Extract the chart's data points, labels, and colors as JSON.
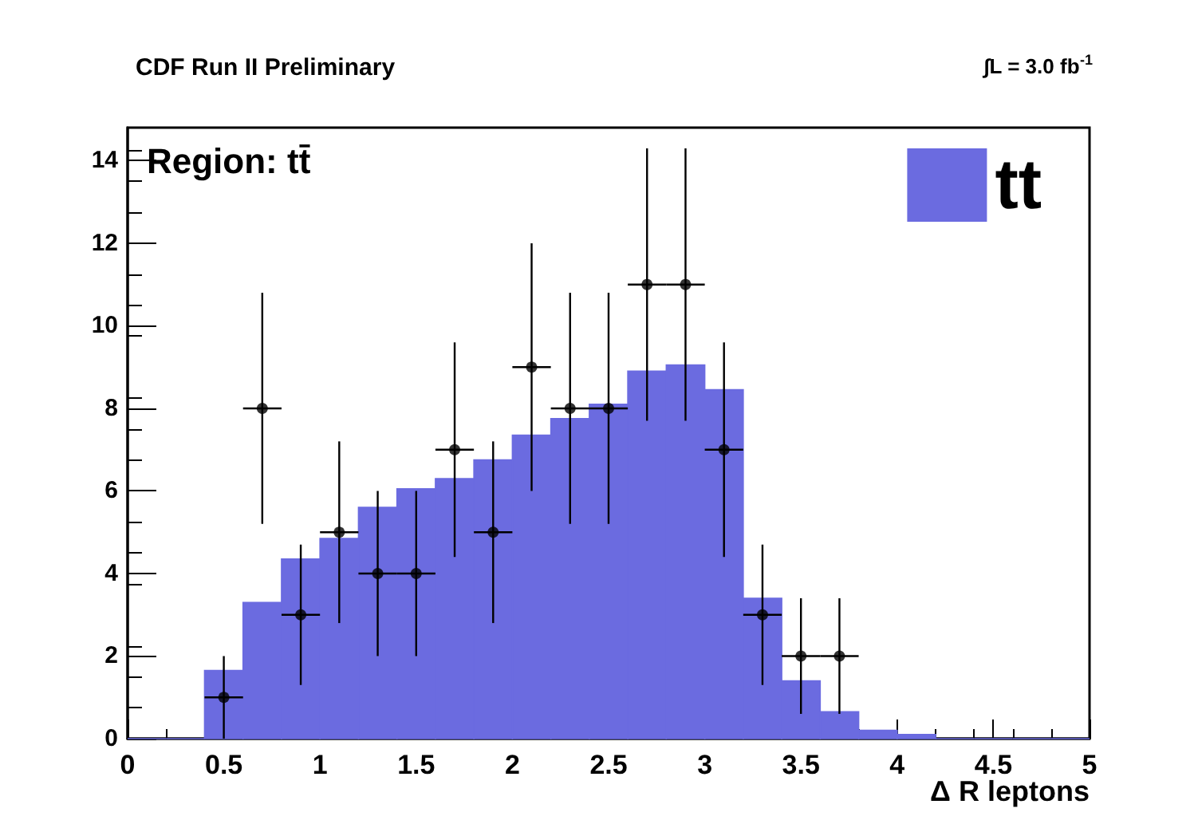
{
  "chart_data": {
    "type": "histogram",
    "title": "CDF Run II Preliminary",
    "xlabel": "Δ R leptons",
    "annotations": [
      "∫L = 3.0 fb$^{-1}$",
      "Region: tt̄"
    ],
    "bins": [
      0,
      0.2,
      0.4,
      0.6,
      0.8,
      1.0,
      1.2,
      1.4,
      1.6,
      1.8,
      2.0,
      2.2,
      2.4,
      2.6,
      2.8,
      3.0,
      3.2,
      3.4,
      3.6,
      3.8,
      4.0,
      4.2,
      4.4,
      4.6,
      4.8,
      5.0
    ],
    "series": [
      {
        "name": "tt",
        "color": "#6b6be0",
        "values": [
          0,
          0,
          1.65,
          3.3,
          4.35,
          4.85,
          5.6,
          6.05,
          6.3,
          6.75,
          7.35,
          7.75,
          8.1,
          8.9,
          9.05,
          8.45,
          3.4,
          1.4,
          0.65,
          0.2,
          0.1,
          0,
          0,
          0,
          0
        ]
      },
      {
        "type": "scatter",
        "color": "#000000",
        "marker": "circle",
        "x": [
          0.5,
          0.7,
          0.9,
          1.1,
          1.3,
          1.5,
          1.7,
          1.9,
          2.1,
          2.3,
          2.5,
          2.7,
          2.9,
          3.1,
          3.3,
          3.5,
          3.7
        ],
        "values": [
          1,
          8,
          3,
          5,
          4,
          4,
          7,
          5,
          9,
          8,
          8,
          11,
          11,
          7,
          3,
          2,
          2
        ],
        "errors": [
          1,
          2.8,
          1.7,
          2.2,
          2,
          2,
          2.6,
          2.2,
          3,
          2.8,
          2.8,
          3.3,
          3.3,
          2.6,
          1.7,
          1.4,
          1.4
        ],
        "xerrors": [
          0.1,
          0.1,
          0.1,
          0.1,
          0.1,
          0.1,
          0.1,
          0.1,
          0.1,
          0.1,
          0.1,
          0.1,
          0.1,
          0.1,
          0.1,
          0.1,
          0.1
        ]
      }
    ],
    "xlim": [
      0,
      5
    ],
    "xticks": [
      0,
      0.5,
      1,
      1.5,
      2,
      2.5,
      3,
      3.5,
      4,
      4.5,
      5
    ],
    "ylim": [
      0,
      14.8
    ],
    "yticks": [
      0,
      2,
      4,
      6,
      8,
      10,
      12,
      14
    ],
    "grid": false,
    "legend": "top right"
  }
}
